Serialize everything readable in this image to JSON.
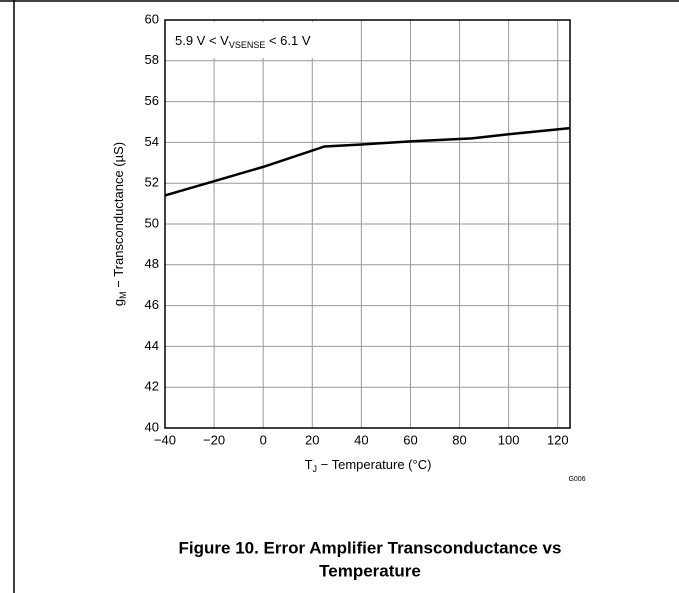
{
  "chart_data": {
    "type": "line",
    "annotation": [
      "5.9 V < V",
      "VSENSE",
      " < 6.1 V"
    ],
    "ylabel": [
      "g",
      "M",
      " − Transconductance (µS)"
    ],
    "xlabel": [
      "T",
      "J",
      " − Temperature (°C)"
    ],
    "code": "G006",
    "title_lines": [
      "Figure 10. Error Amplifier Transconductance vs",
      "Temperature"
    ],
    "x": [
      -40,
      -20,
      0,
      25,
      40,
      60,
      85,
      100,
      125
    ],
    "series": [
      {
        "name": null,
        "color": "#000000",
        "values": [
          51.4,
          52.1,
          52.8,
          53.8,
          53.9,
          54.05,
          54.2,
          54.4,
          54.7
        ]
      }
    ],
    "xlim": [
      -40,
      125
    ],
    "xticks": [
      {
        "value": -40,
        "label": "−40"
      },
      {
        "value": -20,
        "label": "−20"
      },
      0,
      20,
      40,
      60,
      80,
      100,
      120
    ],
    "ylim": [
      40,
      60
    ],
    "yticks": [
      40,
      42,
      44,
      46,
      48,
      50,
      52,
      54,
      56,
      58,
      60
    ],
    "grid": true
  }
}
